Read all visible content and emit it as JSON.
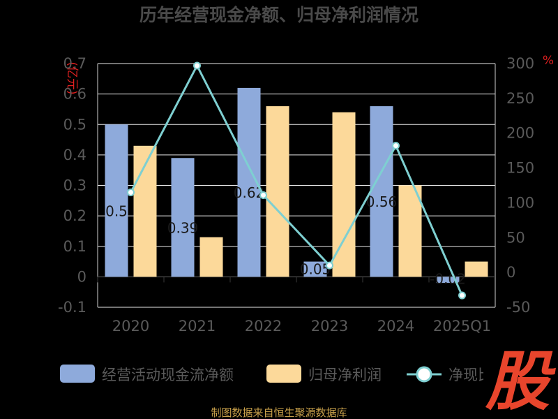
{
  "chart_data": {
    "type": "bar+line",
    "title": "历年经营现金净额、归母净利润情况",
    "categories": [
      "2020",
      "2021",
      "2022",
      "2023",
      "2024",
      "2025Q1"
    ],
    "left_axis": {
      "unit": "亿元",
      "ylim": [
        -0.1,
        0.7
      ],
      "ticks": [
        "-0.1",
        "0",
        "0.1",
        "0.2",
        "0.3",
        "0.4",
        "0.5",
        "0.6",
        "0.7"
      ]
    },
    "right_axis": {
      "unit": "%",
      "ylim": [
        -50,
        300
      ],
      "ticks": [
        "-50",
        "0",
        "50",
        "100",
        "150",
        "200",
        "250",
        "300"
      ]
    },
    "grid": true,
    "legend_position": "bottom",
    "series": [
      {
        "name": "经营活动现金流净额",
        "kind": "bar",
        "axis": "left",
        "color": "#8eaadb",
        "values": [
          0.5,
          0.39,
          0.62,
          0.05,
          0.56,
          -0.02
        ],
        "labels": [
          "0.5",
          "0.39",
          "0.62",
          "0.05",
          "0.56",
          "-0.02"
        ]
      },
      {
        "name": "归母净利润",
        "kind": "bar",
        "axis": "left",
        "color": "#fcd99a",
        "values": [
          0.43,
          0.13,
          0.56,
          0.54,
          0.3,
          0.05
        ]
      },
      {
        "name": "净现比",
        "kind": "line",
        "axis": "right",
        "color": "#7ecfd1",
        "values": [
          115,
          297,
          111,
          10,
          182,
          -33
        ]
      }
    ]
  },
  "legend_labels": [
    "经营活动现金流净额",
    "归母净利润",
    "净现比"
  ],
  "footer": "制图数据来自恒生聚源数据库",
  "watermark_text": "股"
}
